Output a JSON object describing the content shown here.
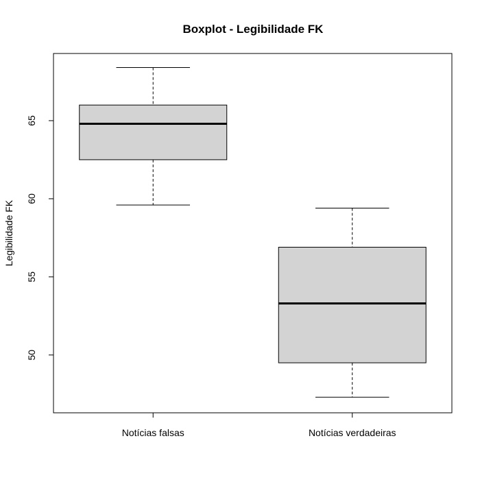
{
  "chart_data": {
    "type": "boxplot",
    "title": "Boxplot - Legibilidade FK",
    "xlabel": "",
    "ylabel": "Legibilidade FK",
    "categories": [
      "Notícias falsas",
      "Notícias verdadeiras"
    ],
    "y_ticks": [
      50,
      55,
      60,
      65
    ],
    "ylim": [
      46.3,
      69.3
    ],
    "grid": false,
    "boxes": [
      {
        "category": "Notícias falsas",
        "whisker_low": 59.6,
        "q1": 62.5,
        "median": 64.8,
        "q3": 66.0,
        "whisker_high": 68.4
      },
      {
        "category": "Notícias verdadeiras",
        "whisker_low": 47.3,
        "q1": 49.5,
        "median": 53.3,
        "q3": 56.9,
        "whisker_high": 59.4
      }
    ],
    "colors": {
      "box_fill": "#d3d3d3",
      "stroke": "#000000"
    }
  }
}
